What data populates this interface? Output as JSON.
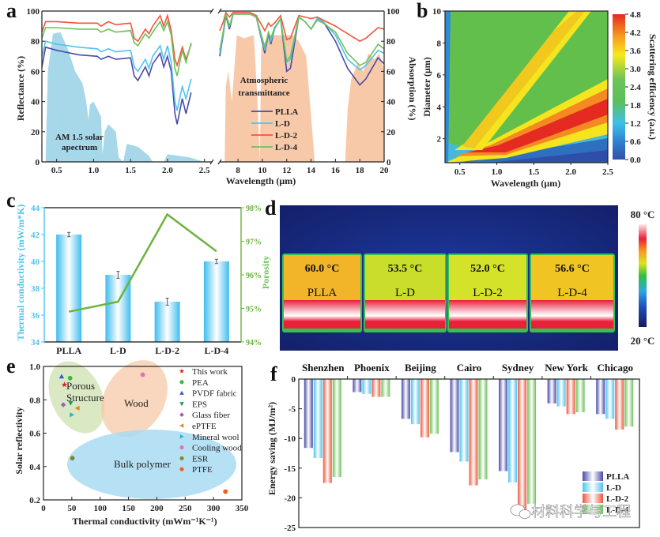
{
  "panels": {
    "a": {
      "letter": "a"
    },
    "b": {
      "letter": "b"
    },
    "c": {
      "letter": "c"
    },
    "d": {
      "letter": "d"
    },
    "e": {
      "letter": "e"
    },
    "f": {
      "letter": "f"
    }
  },
  "colors": {
    "PLLA": "#4b4aa6",
    "L-D": "#4fc3ee",
    "L-D-2": "#f0563a",
    "L-D-4": "#6cc25a"
  },
  "chart_data": [
    {
      "id": "a",
      "type": "line",
      "title": "",
      "xlabel": "Wavelength (μm)",
      "ylabel": "Reflectance (%)",
      "ylabel_right": "Absorption (%)",
      "xlim_left": [
        0.3,
        2.6
      ],
      "xlim_right": [
        6.5,
        20
      ],
      "ylim": [
        0,
        100
      ],
      "xticks_left": [
        "0.5",
        "1.0",
        "1.5",
        "2.0",
        "2.5"
      ],
      "xticks_right": [
        "8",
        "10",
        "12",
        "14",
        "16",
        "18",
        "20"
      ],
      "yticks": [
        "0",
        "20",
        "40",
        "60",
        "80",
        "100"
      ],
      "annotations": [
        "AM 1.5 solar",
        "apectrum",
        "Atmospheric",
        "transmittance"
      ],
      "legend": [
        "PLLA",
        "L-D",
        "L-D-2",
        "L-D-4"
      ],
      "legend_position": "bottom-center of right segment",
      "series_left": [
        {
          "name": "PLLA",
          "x": [
            0.3,
            0.35,
            0.5,
            0.8,
            1.05,
            1.1,
            1.2,
            1.3,
            1.5,
            1.55,
            1.6,
            1.7,
            1.75,
            1.8,
            1.9,
            1.95,
            2.0,
            2.05,
            2.1,
            2.13,
            2.2,
            2.25,
            2.32
          ],
          "y": [
            63,
            76,
            74,
            71,
            70,
            68,
            70,
            68,
            69,
            57,
            54,
            63,
            57,
            65,
            72,
            63,
            70,
            60,
            32,
            25,
            42,
            32,
            46
          ]
        },
        {
          "name": "L-D",
          "x": [
            0.3,
            0.35,
            0.5,
            0.8,
            1.05,
            1.1,
            1.2,
            1.3,
            1.5,
            1.55,
            1.6,
            1.7,
            1.75,
            1.8,
            1.9,
            1.95,
            2.0,
            2.05,
            2.1,
            2.13,
            2.2,
            2.25,
            2.32
          ],
          "y": [
            70,
            80,
            78,
            76,
            75,
            73,
            75,
            73,
            74,
            63,
            60,
            68,
            62,
            70,
            77,
            68,
            77,
            66,
            40,
            34,
            50,
            42,
            55
          ]
        },
        {
          "name": "L-D-2",
          "x": [
            0.3,
            0.35,
            0.5,
            0.8,
            1.05,
            1.1,
            1.2,
            1.3,
            1.5,
            1.55,
            1.6,
            1.7,
            1.75,
            1.8,
            1.9,
            1.95,
            2.0,
            2.05,
            2.1,
            2.13,
            2.2,
            2.25,
            2.32
          ],
          "y": [
            86,
            93,
            93,
            92,
            92,
            90,
            93,
            91,
            92,
            82,
            80,
            88,
            85,
            90,
            97,
            90,
            97,
            87,
            68,
            64,
            76,
            68,
            78
          ]
        },
        {
          "name": "L-D-4",
          "x": [
            0.3,
            0.35,
            0.5,
            0.8,
            1.05,
            1.1,
            1.2,
            1.3,
            1.5,
            1.55,
            1.6,
            1.7,
            1.75,
            1.8,
            1.9,
            1.95,
            2.0,
            2.05,
            2.1,
            2.13,
            2.2,
            2.25,
            2.32
          ],
          "y": [
            82,
            89,
            89,
            88,
            88,
            86,
            88,
            86,
            87,
            79,
            77,
            85,
            82,
            86,
            93,
            87,
            93,
            84,
            62,
            57,
            74,
            66,
            79
          ]
        }
      ],
      "series_right": [
        {
          "name": "PLLA",
          "x": [
            6.5,
            6.8,
            7.0,
            7.3,
            7.6,
            8,
            9,
            9.5,
            10.2,
            10.5,
            10.7,
            11,
            11.5,
            12,
            12.3,
            13,
            13.5,
            14,
            14.5,
            15,
            16,
            17,
            18,
            18.5,
            19.5,
            20
          ],
          "y": [
            70,
            85,
            97,
            88,
            98,
            98,
            98,
            96,
            72,
            85,
            78,
            88,
            95,
            60,
            62,
            96,
            93,
            88,
            95,
            93,
            80,
            62,
            51,
            55,
            69,
            65
          ]
        },
        {
          "name": "L-D",
          "x": [
            6.5,
            6.8,
            7.0,
            7.3,
            7.6,
            8,
            9,
            9.5,
            10.2,
            10.5,
            10.7,
            11,
            11.5,
            12,
            12.3,
            13,
            13.5,
            14,
            14.5,
            15,
            16,
            17,
            18,
            18.5,
            19.5,
            20
          ],
          "y": [
            72,
            86,
            98,
            90,
            98,
            98,
            98,
            96,
            74,
            86,
            80,
            88,
            95,
            66,
            68,
            96,
            93,
            88,
            95,
            93,
            84,
            68,
            61,
            64,
            74,
            72
          ]
        },
        {
          "name": "L-D-2",
          "x": [
            6.5,
            6.8,
            7.0,
            7.3,
            7.6,
            8,
            9,
            9.5,
            10.2,
            10.5,
            10.7,
            11,
            11.5,
            12,
            12.3,
            13,
            13.5,
            14,
            14.5,
            15,
            16,
            17,
            18,
            18.5,
            19.5,
            20
          ],
          "y": [
            87,
            93,
            99,
            96,
            99,
            99,
            99,
            97,
            87,
            92,
            90,
            92,
            97,
            81,
            82,
            97,
            96,
            95,
            96,
            94,
            90,
            85,
            80,
            82,
            89,
            88
          ]
        },
        {
          "name": "L-D-4",
          "x": [
            6.5,
            6.8,
            7.0,
            7.3,
            7.6,
            8,
            9,
            9.5,
            10.2,
            10.5,
            10.7,
            11,
            11.5,
            12,
            12.3,
            13,
            13.5,
            14,
            14.5,
            15,
            16,
            17,
            18,
            18.5,
            19.5,
            20
          ],
          "y": [
            74,
            87,
            98,
            90,
            98,
            98,
            98,
            96,
            76,
            86,
            82,
            89,
            95,
            67,
            70,
            96,
            93,
            88,
            94,
            92,
            86,
            72,
            64,
            66,
            78,
            75
          ]
        }
      ]
    },
    {
      "id": "b",
      "type": "heatmap",
      "title": "",
      "xlabel": "Wavelength (μm)",
      "ylabel": "Diameter (μm)",
      "colorbar_label": "Scattering efficiency (a.u.)",
      "xlim": [
        0.3,
        2.5
      ],
      "ylim": [
        0.5,
        10
      ],
      "xticks": [
        "0.5",
        "1.0",
        "1.5",
        "2.0",
        "2.5"
      ],
      "yticks": [
        "2",
        "4",
        "6",
        "8",
        "10"
      ],
      "colorbar_ticks": [
        "0.0",
        "0.6",
        "1.2",
        "1.8",
        "2.4",
        "3.0",
        "3.6",
        "4.2",
        "4.8"
      ],
      "colorbar_range": [
        0.0,
        4.8
      ],
      "features": [
        {
          "name": "primary-resonance-ridge",
          "peak_value": 4.6,
          "slope_d_per_lambda": 2.0
        },
        {
          "name": "secondary-resonance-ridge",
          "peak_value": 3.7,
          "slope_d_per_lambda": 5.5
        },
        {
          "name": "background",
          "value": 2.4
        },
        {
          "name": "small-particle-region",
          "value": 0.3
        }
      ]
    },
    {
      "id": "c",
      "type": "bar",
      "title": "",
      "categories": [
        "PLLA",
        "L-D",
        "L-D-2",
        "L-D-4"
      ],
      "ylabel": "Thermal conductivity (mW/m*K)",
      "ylabel_right": "Porosity",
      "ylim": [
        34,
        44
      ],
      "ylim_right": [
        94,
        98
      ],
      "yticks": [
        "34",
        "36",
        "38",
        "40",
        "42",
        "44"
      ],
      "yticks_right": [
        "94%",
        "95%",
        "96%",
        "97%",
        "98%"
      ],
      "series": [
        {
          "name": "Thermal conductivity",
          "type": "bar",
          "values": [
            42.0,
            39.0,
            37.0,
            40.0
          ],
          "errors": [
            0.1,
            0.2,
            0.2,
            0.1
          ]
        },
        {
          "name": "Porosity",
          "type": "line",
          "values": [
            94.9,
            95.2,
            97.8,
            96.7
          ]
        }
      ]
    },
    {
      "id": "d",
      "type": "heatmap",
      "title": "",
      "samples": [
        "PLLA",
        "L-D",
        "L-D-2",
        "L-D-4"
      ],
      "temperatures": [
        "60.0 °C",
        "53.5 °C",
        "52.0 °C",
        "56.6 °C"
      ],
      "colorbar_max": "80 °C",
      "colorbar_min": "20 °C"
    },
    {
      "id": "e",
      "type": "scatter",
      "title": "",
      "xlabel": "Thermal conductivity (mWm⁻¹K⁻¹)",
      "ylabel": "Solar reflectivity",
      "xlim": [
        0,
        350
      ],
      "ylim": [
        0.2,
        1.0
      ],
      "xticks": [
        "0",
        "50",
        "100",
        "150",
        "200",
        "250",
        "300",
        "350"
      ],
      "yticks": [
        "0.2",
        "0.4",
        "0.6",
        "0.8",
        "1.0"
      ],
      "legend_position": "top-right",
      "regions": [
        {
          "label": "Porous Structure",
          "line1": "Porous",
          "line2": "Structure",
          "color": "#cfe0b0"
        },
        {
          "label": "Wood",
          "color": "#f7c9a8"
        },
        {
          "label": "Bulk polymer",
          "color": "#a9dcf3"
        }
      ],
      "series": [
        {
          "name": "This work",
          "marker": "star",
          "color": "#e02020",
          "x": 37,
          "y": 0.89
        },
        {
          "name": "PEA",
          "marker": "circle",
          "color": "#3cba3c",
          "x": 47,
          "y": 0.93
        },
        {
          "name": "PVDF fabric",
          "marker": "triangle-up",
          "color": "#2f5fc4",
          "x": 32,
          "y": 0.94
        },
        {
          "name": "EPS",
          "marker": "triangle-down",
          "color": "#20a060",
          "x": 48,
          "y": 0.78
        },
        {
          "name": "Glass fiber",
          "marker": "diamond",
          "color": "#9b59c9",
          "x": 35,
          "y": 0.77
        },
        {
          "name": "ePTFE",
          "marker": "triangle-left",
          "color": "#d48a1e",
          "x": 60,
          "y": 0.75
        },
        {
          "name": "Mineral wool",
          "marker": "triangle-right",
          "color": "#28b8c8",
          "x": 50,
          "y": 0.71
        },
        {
          "name": "Cooling wood",
          "marker": "hexagon",
          "color": "#e070c0",
          "x": 175,
          "y": 0.95
        },
        {
          "name": "ESR",
          "marker": "circle",
          "color": "#7a8a2a",
          "x": 51,
          "y": 0.45
        },
        {
          "name": "PTFE",
          "marker": "hexagon",
          "color": "#f06020",
          "x": 321,
          "y": 0.25
        }
      ]
    },
    {
      "id": "f",
      "type": "bar",
      "title": "",
      "categories": [
        "Shenzhen",
        "Phoenix",
        "Beijing",
        "Cairo",
        "Sydney",
        "New York",
        "Chicago"
      ],
      "ylabel": "Energy saving (MJ/m²)",
      "ylim": [
        -25,
        0
      ],
      "yticks": [
        "0",
        "-5",
        "-10",
        "-15",
        "-20",
        "-25"
      ],
      "legend_position": "bottom-right",
      "series": [
        {
          "name": "PLLA",
          "values": [
            -11.6,
            -2.2,
            -6.7,
            -12.3,
            -15.5,
            -4.1,
            -5.9
          ]
        },
        {
          "name": "L-D",
          "values": [
            -13.3,
            -2.5,
            -7.6,
            -13.9,
            -17.4,
            -4.6,
            -6.7
          ]
        },
        {
          "name": "L-D-2",
          "values": [
            -17.5,
            -3.0,
            -9.8,
            -17.9,
            -22.1,
            -5.9,
            -8.5
          ]
        },
        {
          "name": "L-D-4",
          "values": [
            -16.5,
            -3.0,
            -9.2,
            -16.9,
            -21.0,
            -5.6,
            -8.0
          ]
        }
      ]
    }
  ],
  "watermark": {
    "text": "材料科学与工程"
  }
}
